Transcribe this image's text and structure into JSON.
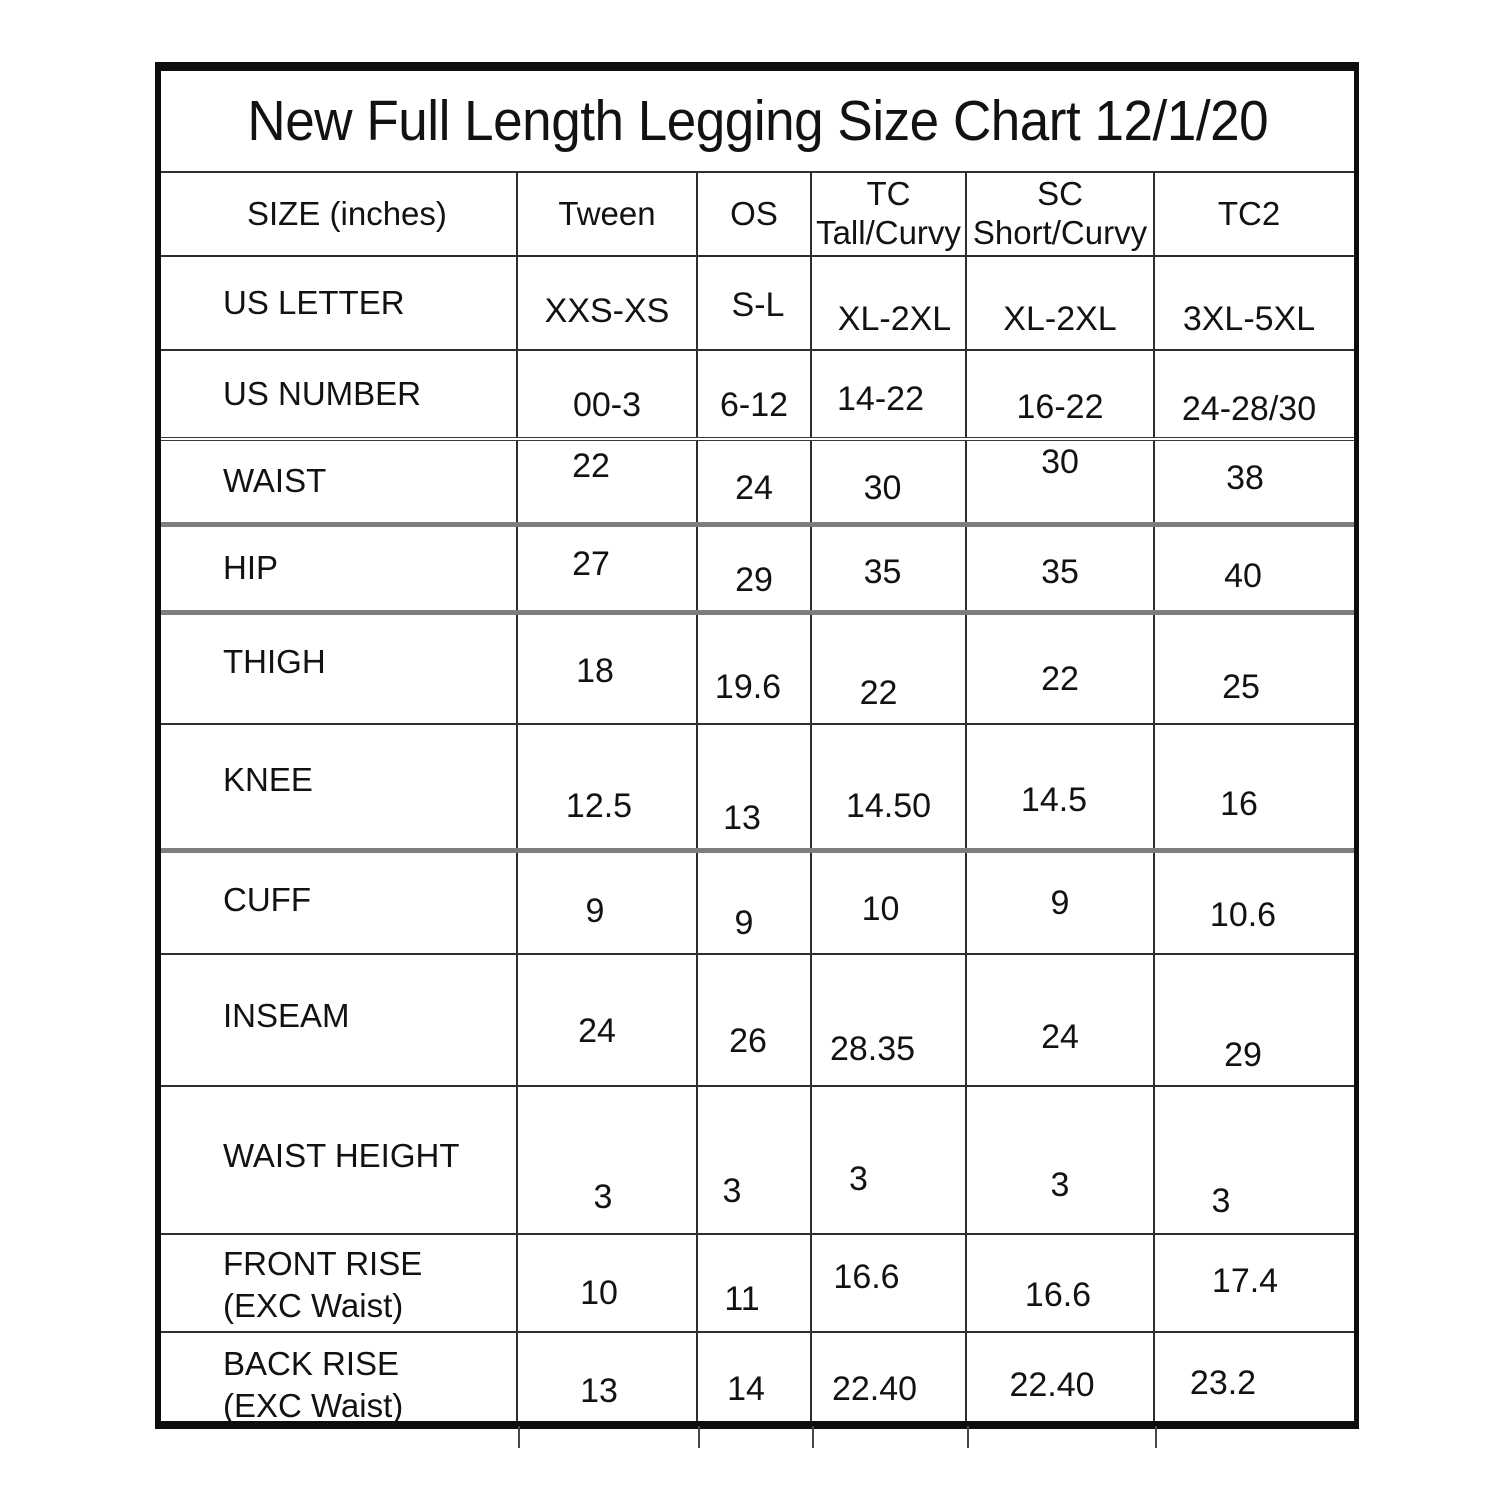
{
  "title": "New Full Length Legging Size Chart 12/1/20",
  "header": {
    "size_label": "SIZE (inches)",
    "columns": [
      {
        "line1": "Tween",
        "line2": ""
      },
      {
        "line1": "OS",
        "line2": ""
      },
      {
        "line1": "TC",
        "line2": "Tall/Curvy"
      },
      {
        "line1": "SC",
        "line2": "Short/Curvy"
      },
      {
        "line1": "TC2",
        "line2": ""
      }
    ]
  },
  "chart_data": {
    "type": "table",
    "title": "New Full Length Legging Size Chart 12/1/20",
    "columns": [
      "SIZE (inches)",
      "Tween",
      "OS",
      "TC Tall/Curvy",
      "SC Short/Curvy",
      "TC2"
    ],
    "rows": [
      {
        "label": "US LETTER",
        "label2": "",
        "values": [
          "XXS-XS",
          "S-L",
          "XL-2XL",
          "XL-2XL",
          "3XL-5XL"
        ]
      },
      {
        "label": "US NUMBER",
        "label2": "",
        "values": [
          "00-3",
          "6-12",
          "14-22",
          "16-22",
          "24-28/30"
        ]
      },
      {
        "label": "WAIST",
        "label2": "",
        "values": [
          "22",
          "24",
          "30",
          "30",
          "38"
        ]
      },
      {
        "label": "HIP",
        "label2": "",
        "values": [
          "27",
          "29",
          "35",
          "35",
          "40"
        ]
      },
      {
        "label": "THIGH",
        "label2": "",
        "values": [
          "18",
          "19.6",
          "22",
          "22",
          "25"
        ]
      },
      {
        "label": "KNEE",
        "label2": "",
        "values": [
          "12.5",
          "13",
          "14.50",
          "14.5",
          "16"
        ]
      },
      {
        "label": "CUFF",
        "label2": "",
        "values": [
          "9",
          "9",
          "10",
          "9",
          "10.6"
        ]
      },
      {
        "label": "INSEAM",
        "label2": "",
        "values": [
          "24",
          "26",
          "28.35",
          "24",
          "29"
        ]
      },
      {
        "label": "WAIST HEIGHT",
        "label2": "",
        "values": [
          "3",
          "3",
          "3",
          "3",
          "3"
        ]
      },
      {
        "label": "FRONT RISE",
        "label2": "(EXC Waist)",
        "values": [
          "10",
          "11",
          "16.6",
          "16.6",
          "17.4"
        ]
      },
      {
        "label": "BACK RISE",
        "label2": "(EXC Waist)",
        "values": [
          "13",
          "14",
          "22.40",
          "22.40",
          "23.2"
        ]
      }
    ]
  }
}
